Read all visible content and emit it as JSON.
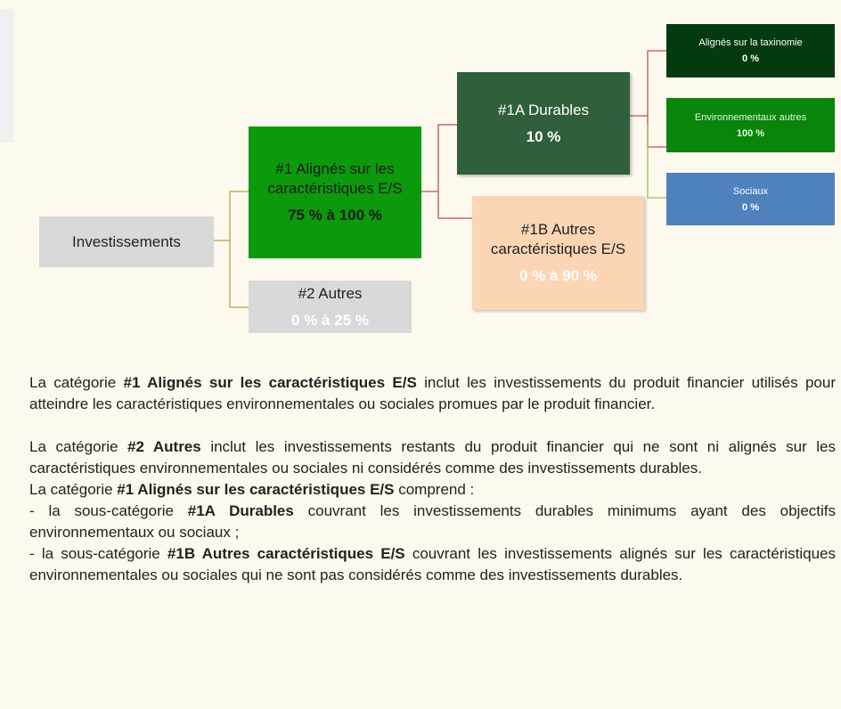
{
  "diagram": {
    "nodes": [
      {
        "label": "Investissements"
      },
      {
        "label": "#1 Alignés sur les caractéristiques E/S",
        "value": "75 % à 100 %"
      },
      {
        "label": "#2 Autres",
        "value": "0 % à 25 %"
      },
      {
        "label": "#1A Durables",
        "value": "10 %"
      },
      {
        "label": "#1B Autres caractéristiques E/S",
        "value": "0 % à 90 %"
      },
      {
        "label": "Alignés sur la taxinomie",
        "value": "0 %"
      },
      {
        "label": "Environnementaux autres",
        "value": "100 %"
      },
      {
        "label": "Sociaux",
        "value": "0 %"
      }
    ]
  },
  "paragraphs": [
    [
      {
        "text": "La catégorie "
      },
      {
        "text": "#1 Alignés sur les caractéristiques E/S",
        "bold": true
      },
      {
        "text": " inclut les investissements du produit financier utilisés pour atteindre les caractéristiques environnementales ou sociales promues par le produit financier."
      }
    ],
    [
      {
        "text": "La catégorie "
      },
      {
        "text": "#2 Autres",
        "bold": true
      },
      {
        "text": " inclut les investissements restants du produit financier qui ne sont ni alignés sur les caractéristiques environnementales ou sociales ni considérés comme des investissements durables."
      }
    ],
    [
      {
        "text": "La catégorie "
      },
      {
        "text": "#1 Alignés sur les caractéristiques E/S",
        "bold": true
      },
      {
        "text": " comprend :"
      }
    ],
    [
      {
        "text": "- la sous-catégorie "
      },
      {
        "text": "#1A Durables",
        "bold": true
      },
      {
        "text": " couvrant les investissements durables minimums ayant des objectifs environnementaux ou sociaux ;"
      }
    ],
    [
      {
        "text": "- la sous-catégorie "
      },
      {
        "text": "#1B Autres caractéristiques E/S",
        "bold": true
      },
      {
        "text": " couvrant les investissements alignés sur les caractéristiques environnementales ou sociales qui ne sont pas considérés comme des investissements durables."
      }
    ]
  ]
}
